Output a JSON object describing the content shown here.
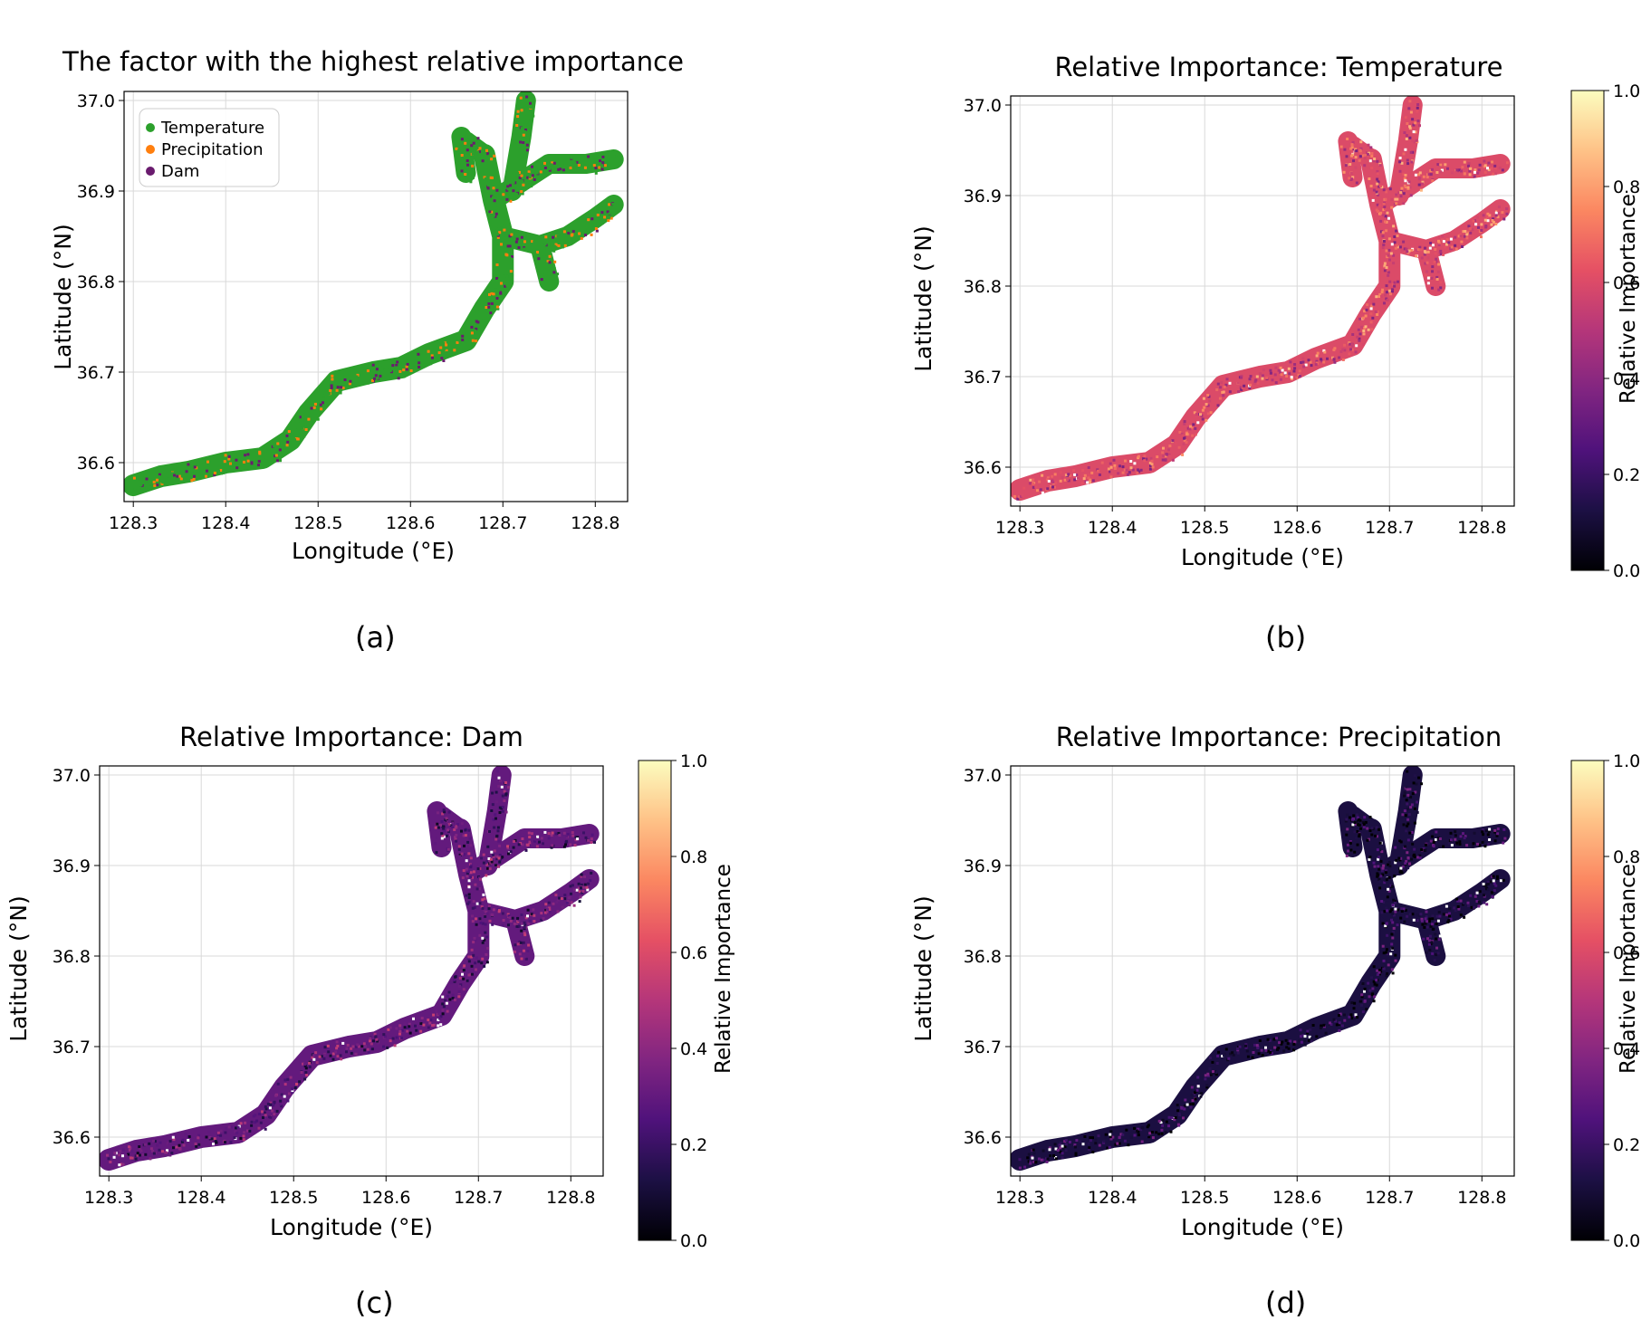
{
  "panels": [
    {
      "caption": "(a)",
      "title": "The factor with the highest relative importance",
      "xlabel": "Longitude (°E)",
      "ylabel": "Latitude (°N)",
      "xticks": [
        "128.3",
        "128.4",
        "128.5",
        "128.6",
        "128.7",
        "128.8"
      ],
      "yticks": [
        "36.6",
        "36.7",
        "36.8",
        "36.9",
        "37.0"
      ],
      "legend": [
        "Temperature",
        "Precipitation",
        "Dam"
      ]
    },
    {
      "caption": "(b)",
      "title": "Relative Importance: Temperature",
      "xlabel": "Longitude (°E)",
      "ylabel": "Latitude (°N)",
      "xticks": [
        "128.3",
        "128.4",
        "128.5",
        "128.6",
        "128.7",
        "128.8"
      ],
      "yticks": [
        "36.6",
        "36.7",
        "36.8",
        "36.9",
        "37.0"
      ],
      "colorbar_label": "Relative Importance",
      "colorbar_ticks": [
        "0.0",
        "0.2",
        "0.4",
        "0.6",
        "0.8",
        "1.0"
      ]
    },
    {
      "caption": "(c)",
      "title": "Relative Importance: Dam",
      "xlabel": "Longitude (°E)",
      "ylabel": "Latitude (°N)",
      "xticks": [
        "128.3",
        "128.4",
        "128.5",
        "128.6",
        "128.7",
        "128.8"
      ],
      "yticks": [
        "36.6",
        "36.7",
        "36.8",
        "36.9",
        "37.0"
      ],
      "colorbar_label": "Relative Importance",
      "colorbar_ticks": [
        "0.0",
        "0.2",
        "0.4",
        "0.6",
        "0.8",
        "1.0"
      ]
    },
    {
      "caption": "(d)",
      "title": "Relative Importance: Precipitation",
      "xlabel": "Longitude (°E)",
      "ylabel": "Latitude (°N)",
      "xticks": [
        "128.3",
        "128.4",
        "128.5",
        "128.6",
        "128.7",
        "128.8"
      ],
      "yticks": [
        "36.6",
        "36.7",
        "36.8",
        "36.9",
        "37.0"
      ],
      "colorbar_label": "Relative Importance",
      "colorbar_ticks": [
        "0.0",
        "0.2",
        "0.4",
        "0.6",
        "0.8",
        "1.0"
      ]
    }
  ],
  "colors": {
    "temperature": "#2ca02c",
    "precipitation": "#ff7f0e",
    "dam": "#6a1b6e",
    "magma": [
      "#000004",
      "#1c1044",
      "#4f127b",
      "#812581",
      "#b5367a",
      "#e55064",
      "#fb8761",
      "#fec287",
      "#fcfdbf"
    ]
  },
  "chart_data": [
    {
      "type": "scatter",
      "title": "The factor with the highest relative importance",
      "xlabel": "Longitude (°E)",
      "ylabel": "Latitude (°N)",
      "xlim": [
        128.29,
        128.835
      ],
      "ylim": [
        36.557,
        37.01
      ],
      "grid": true,
      "legend_position": "top-left",
      "series": [
        {
          "name": "Temperature",
          "dominant_share": 0.7
        },
        {
          "name": "Precipitation",
          "dominant_share": 0.12
        },
        {
          "name": "Dam",
          "dominant_share": 0.18
        }
      ],
      "river_path": {
        "x": [
          128.3,
          128.33,
          128.36,
          128.4,
          128.44,
          128.47,
          128.49,
          128.52,
          128.56,
          128.59,
          128.62,
          128.66,
          128.68,
          128.7,
          128.7,
          128.69,
          128.68
        ],
        "y": [
          36.575,
          36.585,
          36.59,
          36.6,
          36.605,
          36.625,
          36.655,
          36.69,
          36.7,
          36.705,
          36.72,
          36.735,
          36.77,
          36.8,
          36.85,
          36.89,
          36.94
        ]
      }
    },
    {
      "type": "heatmap",
      "title": "Relative Importance: Temperature",
      "xlabel": "Longitude (°E)",
      "ylabel": "Latitude (°N)",
      "xlim": [
        128.29,
        128.835
      ],
      "ylim": [
        36.557,
        37.01
      ],
      "colorbar": {
        "label": "Relative Importance",
        "range": [
          0.0,
          1.0
        ],
        "colormap": "magma"
      },
      "typical_value": 0.6
    },
    {
      "type": "heatmap",
      "title": "Relative Importance: Dam",
      "xlabel": "Longitude (°E)",
      "ylabel": "Latitude (°N)",
      "xlim": [
        128.29,
        128.835
      ],
      "ylim": [
        36.557,
        37.01
      ],
      "colorbar": {
        "label": "Relative Importance",
        "range": [
          0.0,
          1.0
        ],
        "colormap": "magma"
      },
      "typical_value": 0.3
    },
    {
      "type": "heatmap",
      "title": "Relative Importance: Precipitation",
      "xlabel": "Longitude (°E)",
      "ylabel": "Latitude (°N)",
      "xlim": [
        128.29,
        128.835
      ],
      "ylim": [
        36.557,
        37.01
      ],
      "colorbar": {
        "label": "Relative Importance",
        "range": [
          0.0,
          1.0
        ],
        "colormap": "magma"
      },
      "typical_value": 0.12
    }
  ]
}
